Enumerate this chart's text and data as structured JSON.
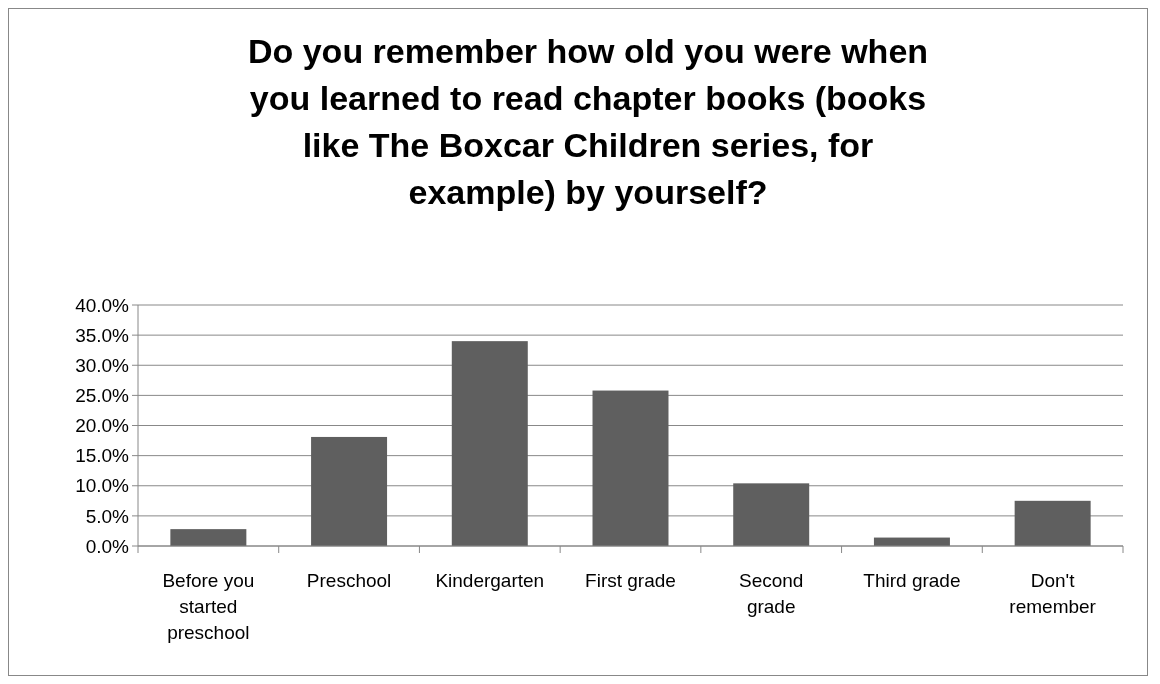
{
  "chart_data": {
    "type": "bar",
    "title": "Do you remember how old you were when you learned to read chapter books (books like The Boxcar Children series, for example) by yourself?",
    "categories": [
      "Before you started preschool",
      "Preschool",
      "Kindergarten",
      "First grade",
      "Second grade",
      "Third grade",
      "Don't remember"
    ],
    "values": [
      2.8,
      18.1,
      34.0,
      25.8,
      10.4,
      1.4,
      7.5
    ],
    "color": "#5f5f5f",
    "ylim": [
      0,
      40
    ],
    "yticks": [
      {
        "value": 0,
        "label": "0.0%"
      },
      {
        "value": 5,
        "label": "5.0%"
      },
      {
        "value": 10,
        "label": "10.0%"
      },
      {
        "value": 15,
        "label": "15.0%"
      },
      {
        "value": 20,
        "label": "20.0%"
      },
      {
        "value": 25,
        "label": "25.0%"
      },
      {
        "value": 30,
        "label": "30.0%"
      },
      {
        "value": 35,
        "label": "35.0%"
      },
      {
        "value": 40,
        "label": "40.0%"
      }
    ],
    "grid": "y"
  }
}
